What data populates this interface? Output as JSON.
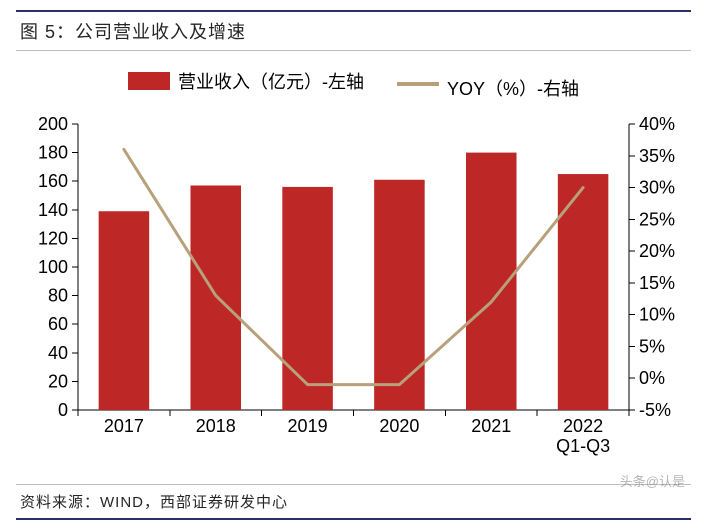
{
  "figure": {
    "title": "图 5：公司营业收入及增速",
    "source": "资料来源：WIND，西部证券研发中心",
    "watermark": "头条@认是",
    "frame_color": "#2a2f6a",
    "rule_color": "#bfbfbf",
    "background_color": "#ffffff"
  },
  "legend": {
    "bar_label": "营业收入（亿元）-左轴",
    "line_label": "YOY（%）-右轴"
  },
  "chart": {
    "type": "bar+line",
    "categories": [
      "2017",
      "2018",
      "2019",
      "2020",
      "2021",
      "2022\nQ1-Q3"
    ],
    "bar_series": {
      "name": "revenue",
      "values": [
        139,
        157,
        156,
        161,
        180,
        165
      ],
      "color": "#bd2725",
      "bar_width": 0.55
    },
    "line_series": {
      "name": "yoy",
      "values": [
        36,
        13,
        -1,
        -1,
        12,
        30
      ],
      "color": "#b7a07a",
      "line_width": 3
    },
    "y_left": {
      "min": 0,
      "max": 200,
      "step": 20,
      "labels": [
        "0",
        "20",
        "40",
        "60",
        "80",
        "100",
        "120",
        "140",
        "160",
        "180",
        "200"
      ]
    },
    "y_right": {
      "min": -5,
      "max": 40,
      "step": 5,
      "labels": [
        "-5%",
        "0%",
        "5%",
        "10%",
        "15%",
        "20%",
        "25%",
        "30%",
        "35%",
        "40%"
      ]
    },
    "tick_len": 6,
    "axis_color": "#000000",
    "text_color": "#000000",
    "label_fontsize": 18
  }
}
